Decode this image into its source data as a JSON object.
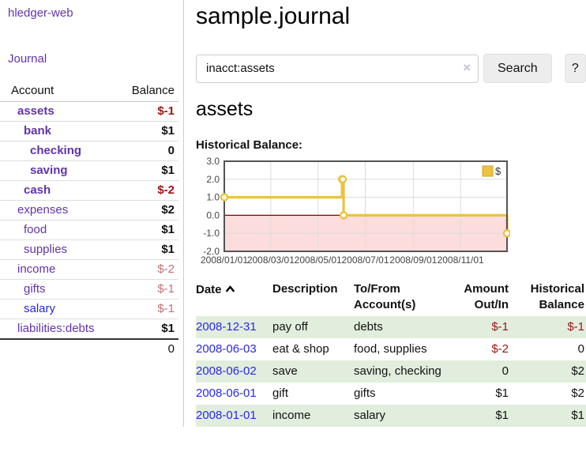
{
  "app": {
    "title": "hledger-web"
  },
  "sidebar": {
    "nav": [
      {
        "label": "Journal"
      }
    ],
    "accounts_table": {
      "headers": {
        "account": "Account",
        "balance": "Balance"
      },
      "rows": [
        {
          "name": "assets",
          "balance": "$-1",
          "indent": 0,
          "bold": true,
          "balance_color": "negative"
        },
        {
          "name": "bank",
          "balance": "$1",
          "indent": 1,
          "bold": true,
          "balance_color": "normal"
        },
        {
          "name": "checking",
          "balance": "0",
          "indent": 2,
          "bold": true,
          "balance_color": "normal"
        },
        {
          "name": "saving",
          "balance": "$1",
          "indent": 2,
          "bold": true,
          "balance_color": "normal"
        },
        {
          "name": "cash",
          "balance": "$-2",
          "indent": 1,
          "bold": true,
          "balance_color": "negative"
        },
        {
          "name": "expenses",
          "balance": "$2",
          "indent": 0,
          "bold": false,
          "balance_color": "normal"
        },
        {
          "name": "food",
          "balance": "$1",
          "indent": 1,
          "bold": false,
          "balance_color": "normal"
        },
        {
          "name": "supplies",
          "balance": "$1",
          "indent": 1,
          "bold": false,
          "balance_color": "normal"
        },
        {
          "name": "income",
          "balance": "$-2",
          "indent": 0,
          "bold": false,
          "balance_color": "negative-light"
        },
        {
          "name": "gifts",
          "balance": "$-1",
          "indent": 1,
          "bold": false,
          "balance_color": "negative-light"
        },
        {
          "name": "salary",
          "balance": "$-1",
          "indent": 1,
          "bold": false,
          "balance_color": "negative-light",
          "link_color": "blue"
        },
        {
          "name": "liabilities:debts",
          "balance": "$1",
          "indent": 0,
          "bold": false,
          "balance_color": "normal"
        }
      ],
      "total": "0"
    }
  },
  "header": {
    "title": "sample.journal"
  },
  "search": {
    "value": "inacct:assets",
    "clear_icon": "×",
    "button_label": "Search",
    "help_label": "?"
  },
  "register": {
    "heading": "assets",
    "chart_label": "Historical Balance:"
  },
  "icons": {
    "sort_ascending": "chevron-up",
    "clear_search": "x-mark",
    "legend_swatch": "yellow-square"
  },
  "colors": {
    "link_purple": "#6134a8",
    "link_blue": "#2828e8",
    "negative_dark": "#9d1313",
    "negative_light": "#c47272",
    "row_green": "#e2eedd",
    "series_gold": "#edc240"
  },
  "chart_data": {
    "type": "line",
    "style": "step",
    "title": "Historical Balance:",
    "xlabel": "",
    "ylabel": "",
    "xlim_days": [
      0,
      365
    ],
    "ylim": [
      -2,
      3
    ],
    "grid": true,
    "legend": {
      "label": "$",
      "position": "top-right"
    },
    "zero_line_color": "#8b0000",
    "negative_region_color": "#fcdcdc",
    "series": [
      {
        "name": "$",
        "color": "#edc240",
        "points": [
          {
            "date": "2008-01-01",
            "day": 0,
            "value": 1
          },
          {
            "date": "2008-06-01",
            "day": 152,
            "value": 2
          },
          {
            "date": "2008-06-02",
            "day": 153,
            "value": 2
          },
          {
            "date": "2008-06-03",
            "day": 154,
            "value": 0
          },
          {
            "date": "2008-12-31",
            "day": 365,
            "value": -1
          }
        ]
      }
    ],
    "x_ticks": [
      {
        "day": 0,
        "label": "2008/01/01"
      },
      {
        "day": 60,
        "label": "2008/03/01"
      },
      {
        "day": 121,
        "label": "2008/05/01"
      },
      {
        "day": 182,
        "label": "2008/07/01"
      },
      {
        "day": 244,
        "label": "2008/09/01"
      },
      {
        "day": 305,
        "label": "2008/11/01"
      }
    ],
    "y_ticks": [
      {
        "value": 3,
        "label": "3.0"
      },
      {
        "value": 2,
        "label": "2.0"
      },
      {
        "value": 1,
        "label": "1.0"
      },
      {
        "value": 0,
        "label": "0.0"
      },
      {
        "value": -1,
        "label": "-1.0"
      },
      {
        "value": -2,
        "label": "-2.0"
      }
    ]
  },
  "transactions": {
    "columns": [
      {
        "label": "Date",
        "sorted": "ascending"
      },
      {
        "label": "Description"
      },
      {
        "label": "To/From Account(s)"
      },
      {
        "label": "Amount Out/In",
        "align": "right"
      },
      {
        "label": "Historical Balance",
        "align": "right"
      }
    ],
    "rows": [
      {
        "date": "2008-12-31",
        "description": "pay off",
        "accounts": "debts",
        "amount": "$-1",
        "amount_negative": true,
        "balance": "$-1",
        "balance_negative": true
      },
      {
        "date": "2008-06-03",
        "description": "eat & shop",
        "accounts": "food, supplies",
        "amount": "$-2",
        "amount_negative": true,
        "balance": "0",
        "balance_negative": false
      },
      {
        "date": "2008-06-02",
        "description": "save",
        "accounts": "saving, checking",
        "amount": "0",
        "amount_negative": false,
        "balance": "$2",
        "balance_negative": false
      },
      {
        "date": "2008-06-01",
        "description": "gift",
        "accounts": "gifts",
        "amount": "$1",
        "amount_negative": false,
        "balance": "$2",
        "balance_negative": false
      },
      {
        "date": "2008-01-01",
        "description": "income",
        "accounts": "salary",
        "amount": "$1",
        "amount_negative": false,
        "balance": "$1",
        "balance_negative": false
      }
    ]
  }
}
